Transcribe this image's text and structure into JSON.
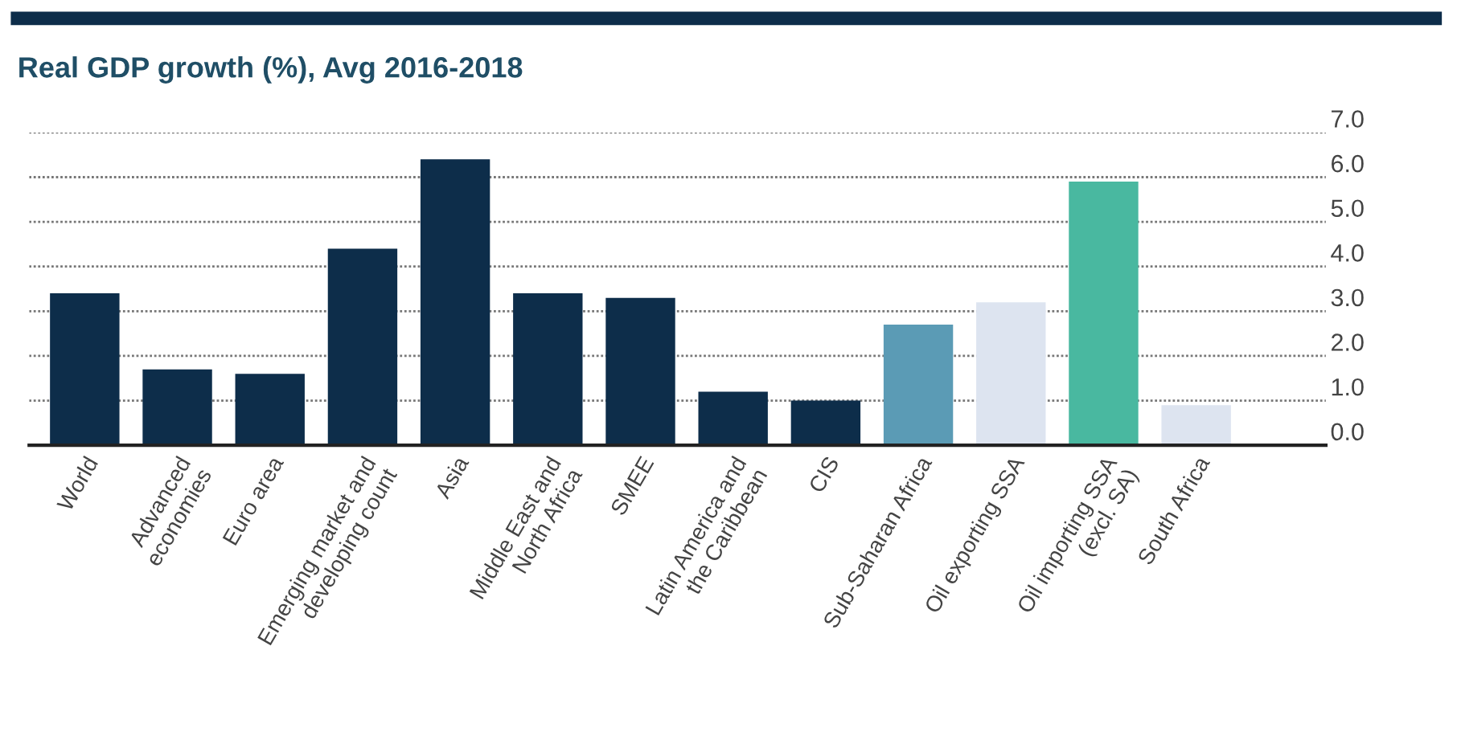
{
  "chart_data": {
    "type": "bar",
    "title": "Real GDP growth (%), Avg 2016-2018",
    "categories": [
      "World",
      "Advanced\neconomies",
      "Euro area",
      "Emerging market and\ndeveloping count",
      "Asia",
      "Middle East and\nNorth Africa",
      "SMEE",
      "Latin America and\nthe Caribbean",
      "CIS",
      "Sub-Saharan Africa",
      "Oil exporting SSA",
      "Oil importing SSA\n(excl. SA)",
      "South Africa"
    ],
    "values": [
      3.4,
      1.7,
      1.6,
      4.4,
      6.4,
      3.4,
      3.3,
      1.2,
      1.0,
      2.7,
      3.2,
      5.9,
      0.9
    ],
    "colors": [
      "#0d2d4a",
      "#0d2d4a",
      "#0d2d4a",
      "#0d2d4a",
      "#0d2d4a",
      "#0d2d4a",
      "#0d2d4a",
      "#0d2d4a",
      "#0d2d4a",
      "#5b9bb5",
      "#dde4f0",
      "#49b8a0",
      "#dde4f0"
    ],
    "ylim": [
      0,
      7.0
    ],
    "yticks": [
      {
        "value": 0,
        "label": "0.0"
      },
      {
        "value": 1,
        "label": "1.0"
      },
      {
        "value": 2,
        "label": "2.0"
      },
      {
        "value": 3,
        "label": "3.0"
      },
      {
        "value": 4,
        "label": "4.0"
      },
      {
        "value": 5,
        "label": "5.0"
      },
      {
        "value": 6,
        "label": "6.0"
      },
      {
        "value": 7,
        "label": "7.0"
      }
    ],
    "grid": "y"
  }
}
